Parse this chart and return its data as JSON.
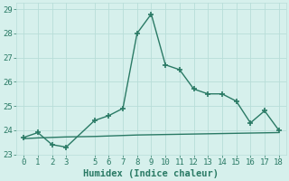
{
  "xlabel": "Humidex (Indice chaleur)",
  "line1_x": [
    0,
    1,
    2,
    3,
    5,
    6,
    7,
    8,
    9,
    10,
    11,
    12,
    13,
    14,
    15,
    16,
    17,
    18
  ],
  "line1_y": [
    23.7,
    23.9,
    23.4,
    23.3,
    24.4,
    24.6,
    24.9,
    28.0,
    28.8,
    26.7,
    26.5,
    25.7,
    25.5,
    25.5,
    25.2,
    24.3,
    24.8,
    24.0
  ],
  "line2_x": [
    0,
    1,
    2,
    3,
    4,
    5,
    6,
    7,
    8,
    9,
    10,
    11,
    12,
    13,
    14,
    15,
    16,
    17,
    18
  ],
  "line2_y": [
    23.65,
    23.68,
    23.7,
    23.72,
    23.73,
    23.74,
    23.76,
    23.78,
    23.8,
    23.81,
    23.82,
    23.83,
    23.84,
    23.85,
    23.86,
    23.87,
    23.88,
    23.89,
    23.9
  ],
  "line_color": "#2a7a65",
  "bg_color": "#d6f0ec",
  "grid_color": "#b8ddd8",
  "tick_color": "#2a7a65",
  "ylim": [
    23.0,
    29.25
  ],
  "xlim": [
    -0.5,
    18.5
  ],
  "yticks": [
    23,
    24,
    25,
    26,
    27,
    28,
    29
  ],
  "xticks": [
    0,
    1,
    2,
    3,
    5,
    6,
    7,
    8,
    9,
    10,
    11,
    12,
    13,
    14,
    15,
    16,
    17,
    18
  ],
  "marker": "+",
  "markersize": 4,
  "linewidth": 1.0,
  "xlabel_fontsize": 7.5,
  "tick_fontsize": 6.5
}
